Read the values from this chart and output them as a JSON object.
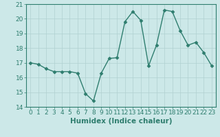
{
  "x": [
    0,
    1,
    2,
    3,
    4,
    5,
    6,
    7,
    8,
    9,
    10,
    11,
    12,
    13,
    14,
    15,
    16,
    17,
    18,
    19,
    20,
    21,
    22,
    23
  ],
  "y": [
    17.0,
    16.9,
    16.6,
    16.4,
    16.4,
    16.4,
    16.3,
    14.9,
    14.4,
    16.3,
    17.3,
    17.35,
    19.8,
    20.5,
    19.9,
    16.8,
    18.2,
    20.6,
    20.5,
    19.2,
    18.2,
    18.4,
    17.7,
    16.8
  ],
  "line_color": "#2e7d6e",
  "marker": "D",
  "markersize": 2.5,
  "linewidth": 1.0,
  "bg_color": "#cce8e8",
  "grid_color": "#b0d0d0",
  "xlabel": "Humidex (Indice chaleur)",
  "ylim": [
    14,
    21
  ],
  "xlim": [
    -0.5,
    23.5
  ],
  "yticks": [
    14,
    15,
    16,
    17,
    18,
    19,
    20,
    21
  ],
  "xticks": [
    0,
    1,
    2,
    3,
    4,
    5,
    6,
    7,
    8,
    9,
    10,
    11,
    12,
    13,
    14,
    15,
    16,
    17,
    18,
    19,
    20,
    21,
    22,
    23
  ],
  "tick_fontsize": 6.5,
  "xlabel_fontsize": 7.5,
  "tick_color": "#2e7d6e",
  "spine_color": "#2e7d6e"
}
